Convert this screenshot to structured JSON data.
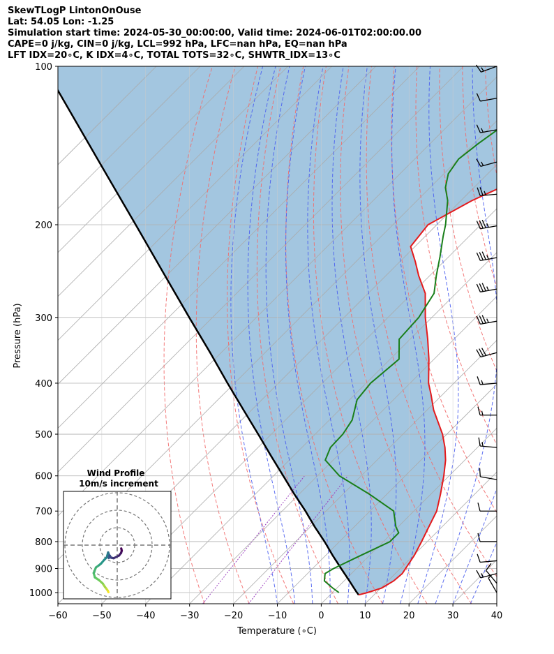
{
  "header": {
    "line1": "SkewTLogP LintonOnOuse",
    "line2": "Lat: 54.05   Lon: -1.25",
    "line3": "Simulation start time: 2024-05-30_00:00:00, Valid time: 2024-06-01T02:00:00.00",
    "line4": "CAPE=0 j/kg, CIN=0 j/kg, LCL=992 hPa, LFC=nan hPa, EQ=nan hPa",
    "line5": "LFT IDX=20∘C, K IDX=4∘C, TOTAL TOTS=32∘C, SHWTR_IDX=13∘C"
  },
  "chart_data": {
    "type": "line",
    "xlabel": "Temperature (∘C)",
    "ylabel": "Pressure (hPa)",
    "xlim": [
      -60,
      40
    ],
    "ylim": [
      1050,
      100
    ],
    "y_scale": "log",
    "skew": true,
    "x_ticks": [
      "−60",
      "−50",
      "−40",
      "−30",
      "−20",
      "−10",
      "0",
      "10",
      "20",
      "30",
      "40"
    ],
    "y_ticks": [
      "100",
      "200",
      "300",
      "400",
      "500",
      "600",
      "700",
      "800",
      "900",
      "1000"
    ],
    "y_tick_values": [
      100,
      200,
      300,
      400,
      500,
      600,
      700,
      800,
      900,
      1000
    ],
    "grid": true,
    "colors": {
      "temperature": "#e41a1c",
      "dewpoint": "#1a7f1a",
      "parcel": "#000000",
      "shade": "#a3c6e0",
      "dry_adiabats": "#f26b6b",
      "moist_adiabats": "#4a5ef0",
      "mixing_ratio": "#9b3fbf",
      "isotherms": "#aaaaaa"
    },
    "series": [
      {
        "role": "temperature",
        "pressure": [
          1010,
          1000,
          980,
          950,
          920,
          900,
          850,
          800,
          750,
          700,
          650,
          600,
          560,
          530,
          500,
          450,
          420,
          400,
          360,
          330,
          300,
          270,
          250,
          235,
          220,
          200,
          180,
          170,
          160,
          150,
          140,
          130,
          120,
          110,
          100
        ],
        "temperature": [
          6.5,
          8.0,
          10.2,
          11.3,
          11.6,
          11.2,
          10.2,
          8.7,
          7.0,
          5.2,
          2.2,
          -1.2,
          -4.4,
          -7.4,
          -11.0,
          -18.5,
          -22.7,
          -25.8,
          -31.2,
          -36.0,
          -41.5,
          -47.0,
          -52.5,
          -56.5,
          -61.0,
          -62.0,
          -57.5,
          -54.0,
          -51.0,
          -49.0,
          -48.0,
          -48.0,
          -48.5,
          -49.5,
          -50.5
        ]
      },
      {
        "role": "dewpoint",
        "pressure": [
          1000,
          980,
          950,
          920,
          900,
          850,
          800,
          770,
          750,
          700,
          650,
          600,
          560,
          530,
          500,
          470,
          430,
          400,
          360,
          330,
          300,
          270,
          250,
          230,
          210,
          200,
          180,
          170,
          160,
          150,
          140,
          130,
          120,
          110,
          100
        ],
        "temperature": [
          1.5,
          -1.0,
          -4.5,
          -6.0,
          -5.2,
          -2.0,
          1.5,
          1.5,
          -0.5,
          -4.6,
          -14.0,
          -25.0,
          -31.8,
          -33.5,
          -33.7,
          -34.8,
          -38.3,
          -39.0,
          -38.0,
          -42.5,
          -43.0,
          -45.0,
          -48.5,
          -52.0,
          -56.0,
          -58.0,
          -63.0,
          -66.5,
          -69.0,
          -70.0,
          -69.0,
          -67.5,
          -65.5,
          -63.0,
          -60.5
        ]
      },
      {
        "role": "parcel",
        "pressure": [
          1010,
          992,
          950,
          900,
          850,
          800,
          750,
          700,
          650,
          600,
          550,
          500,
          450,
          400,
          350,
          300,
          250,
          200,
          150,
          100
        ],
        "temperature": [
          6.5,
          4.9,
          1.2,
          -3.5,
          -8.4,
          -13.4,
          -19.0,
          -24.7,
          -31.1,
          -37.8,
          -45.1,
          -53.0,
          -61.8,
          -71.6,
          -82.5,
          -95.3,
          -110.3,
          -128.6,
          -152.3,
          -185.6
        ]
      }
    ],
    "wind_barbs": {
      "pressure": [
        100,
        115,
        132,
        152,
        175,
        201,
        231,
        265,
        305,
        350,
        400,
        460,
        530,
        610,
        700,
        800,
        870,
        920,
        960,
        1000
      ],
      "speed_kt": [
        15,
        10,
        15,
        15,
        25,
        35,
        35,
        35,
        35,
        30,
        15,
        15,
        15,
        10,
        10,
        10,
        10,
        15,
        10,
        5
      ],
      "direction_deg": [
        250,
        260,
        260,
        255,
        265,
        260,
        260,
        260,
        260,
        255,
        265,
        270,
        275,
        280,
        270,
        270,
        265,
        255,
        320,
        330
      ]
    },
    "hodograph": {
      "title": "Wind Profile",
      "subtitle": "10m/s increment",
      "ring_spacing": 10,
      "u": [
        -5.0,
        -5.5,
        -6.2,
        -7.0,
        -8.3,
        -10.5,
        -12.8,
        -13.5,
        -12.2,
        -10.4,
        -9.2,
        -7.5,
        -6.0,
        -5.2,
        -4.5,
        -4.8,
        -4.3,
        -3.5,
        -2.0,
        1.0,
        2.2,
        2.6,
        2.3
      ],
      "v": [
        -27.0,
        -26.0,
        -25.0,
        -24.0,
        -22.0,
        -20.0,
        -18.5,
        -16.0,
        -12.8,
        -11.5,
        -10.5,
        -8.5,
        -7.0,
        -4.2,
        -6.0,
        -7.4,
        -6.0,
        -7.2,
        -7.5,
        -6.0,
        -4.5,
        -3.2,
        -1.9
      ]
    }
  }
}
